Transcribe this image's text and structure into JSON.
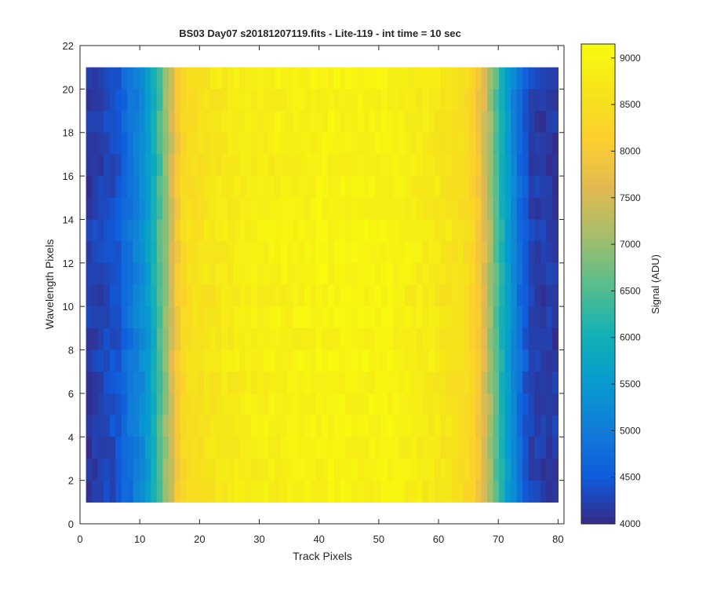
{
  "chart_data": {
    "type": "heatmap",
    "title": "BS03 Day07  s20181207119.fits - Lite-119 - int time = 10 sec",
    "xlabel": "Track Pixels",
    "ylabel": "Wavelength Pixels",
    "xlim": [
      0,
      81
    ],
    "ylim": [
      0,
      22
    ],
    "xticks": [
      0,
      10,
      20,
      30,
      40,
      50,
      60,
      70,
      80
    ],
    "yticks": [
      0,
      2,
      4,
      6,
      8,
      10,
      12,
      14,
      16,
      18,
      20,
      22
    ],
    "x_range": [
      1,
      80
    ],
    "y_range": [
      1,
      21
    ],
    "x_columns": 80,
    "y_rows": 20,
    "column_profile": [
      4200,
      4250,
      4300,
      4350,
      4400,
      4500,
      4700,
      4900,
      5100,
      5300,
      5600,
      6000,
      6500,
      7000,
      7500,
      8000,
      8350,
      8500,
      8550,
      8600,
      8650,
      8700,
      8750,
      8780,
      8800,
      8820,
      8840,
      8860,
      8880,
      8900,
      8910,
      8920,
      8930,
      8940,
      8950,
      8960,
      8970,
      8980,
      8990,
      9000,
      9000,
      9000,
      9000,
      9000,
      9000,
      9000,
      9000,
      9000,
      9000,
      9000,
      8990,
      8980,
      8960,
      8940,
      8920,
      8900,
      8870,
      8840,
      8800,
      8760,
      8720,
      8680,
      8620,
      8550,
      8450,
      8300,
      8000,
      7600,
      7100,
      6600,
      6100,
      5600,
      5200,
      4800,
      4500,
      4300,
      4250,
      4200,
      4200,
      4200
    ],
    "colorbar": {
      "label": "Signal (ADU)",
      "min": 4000,
      "max": 9150,
      "ticks": [
        4000,
        4500,
        5000,
        5500,
        6000,
        6500,
        7000,
        7500,
        8000,
        8500,
        9000
      ],
      "colormap": "parula"
    }
  }
}
